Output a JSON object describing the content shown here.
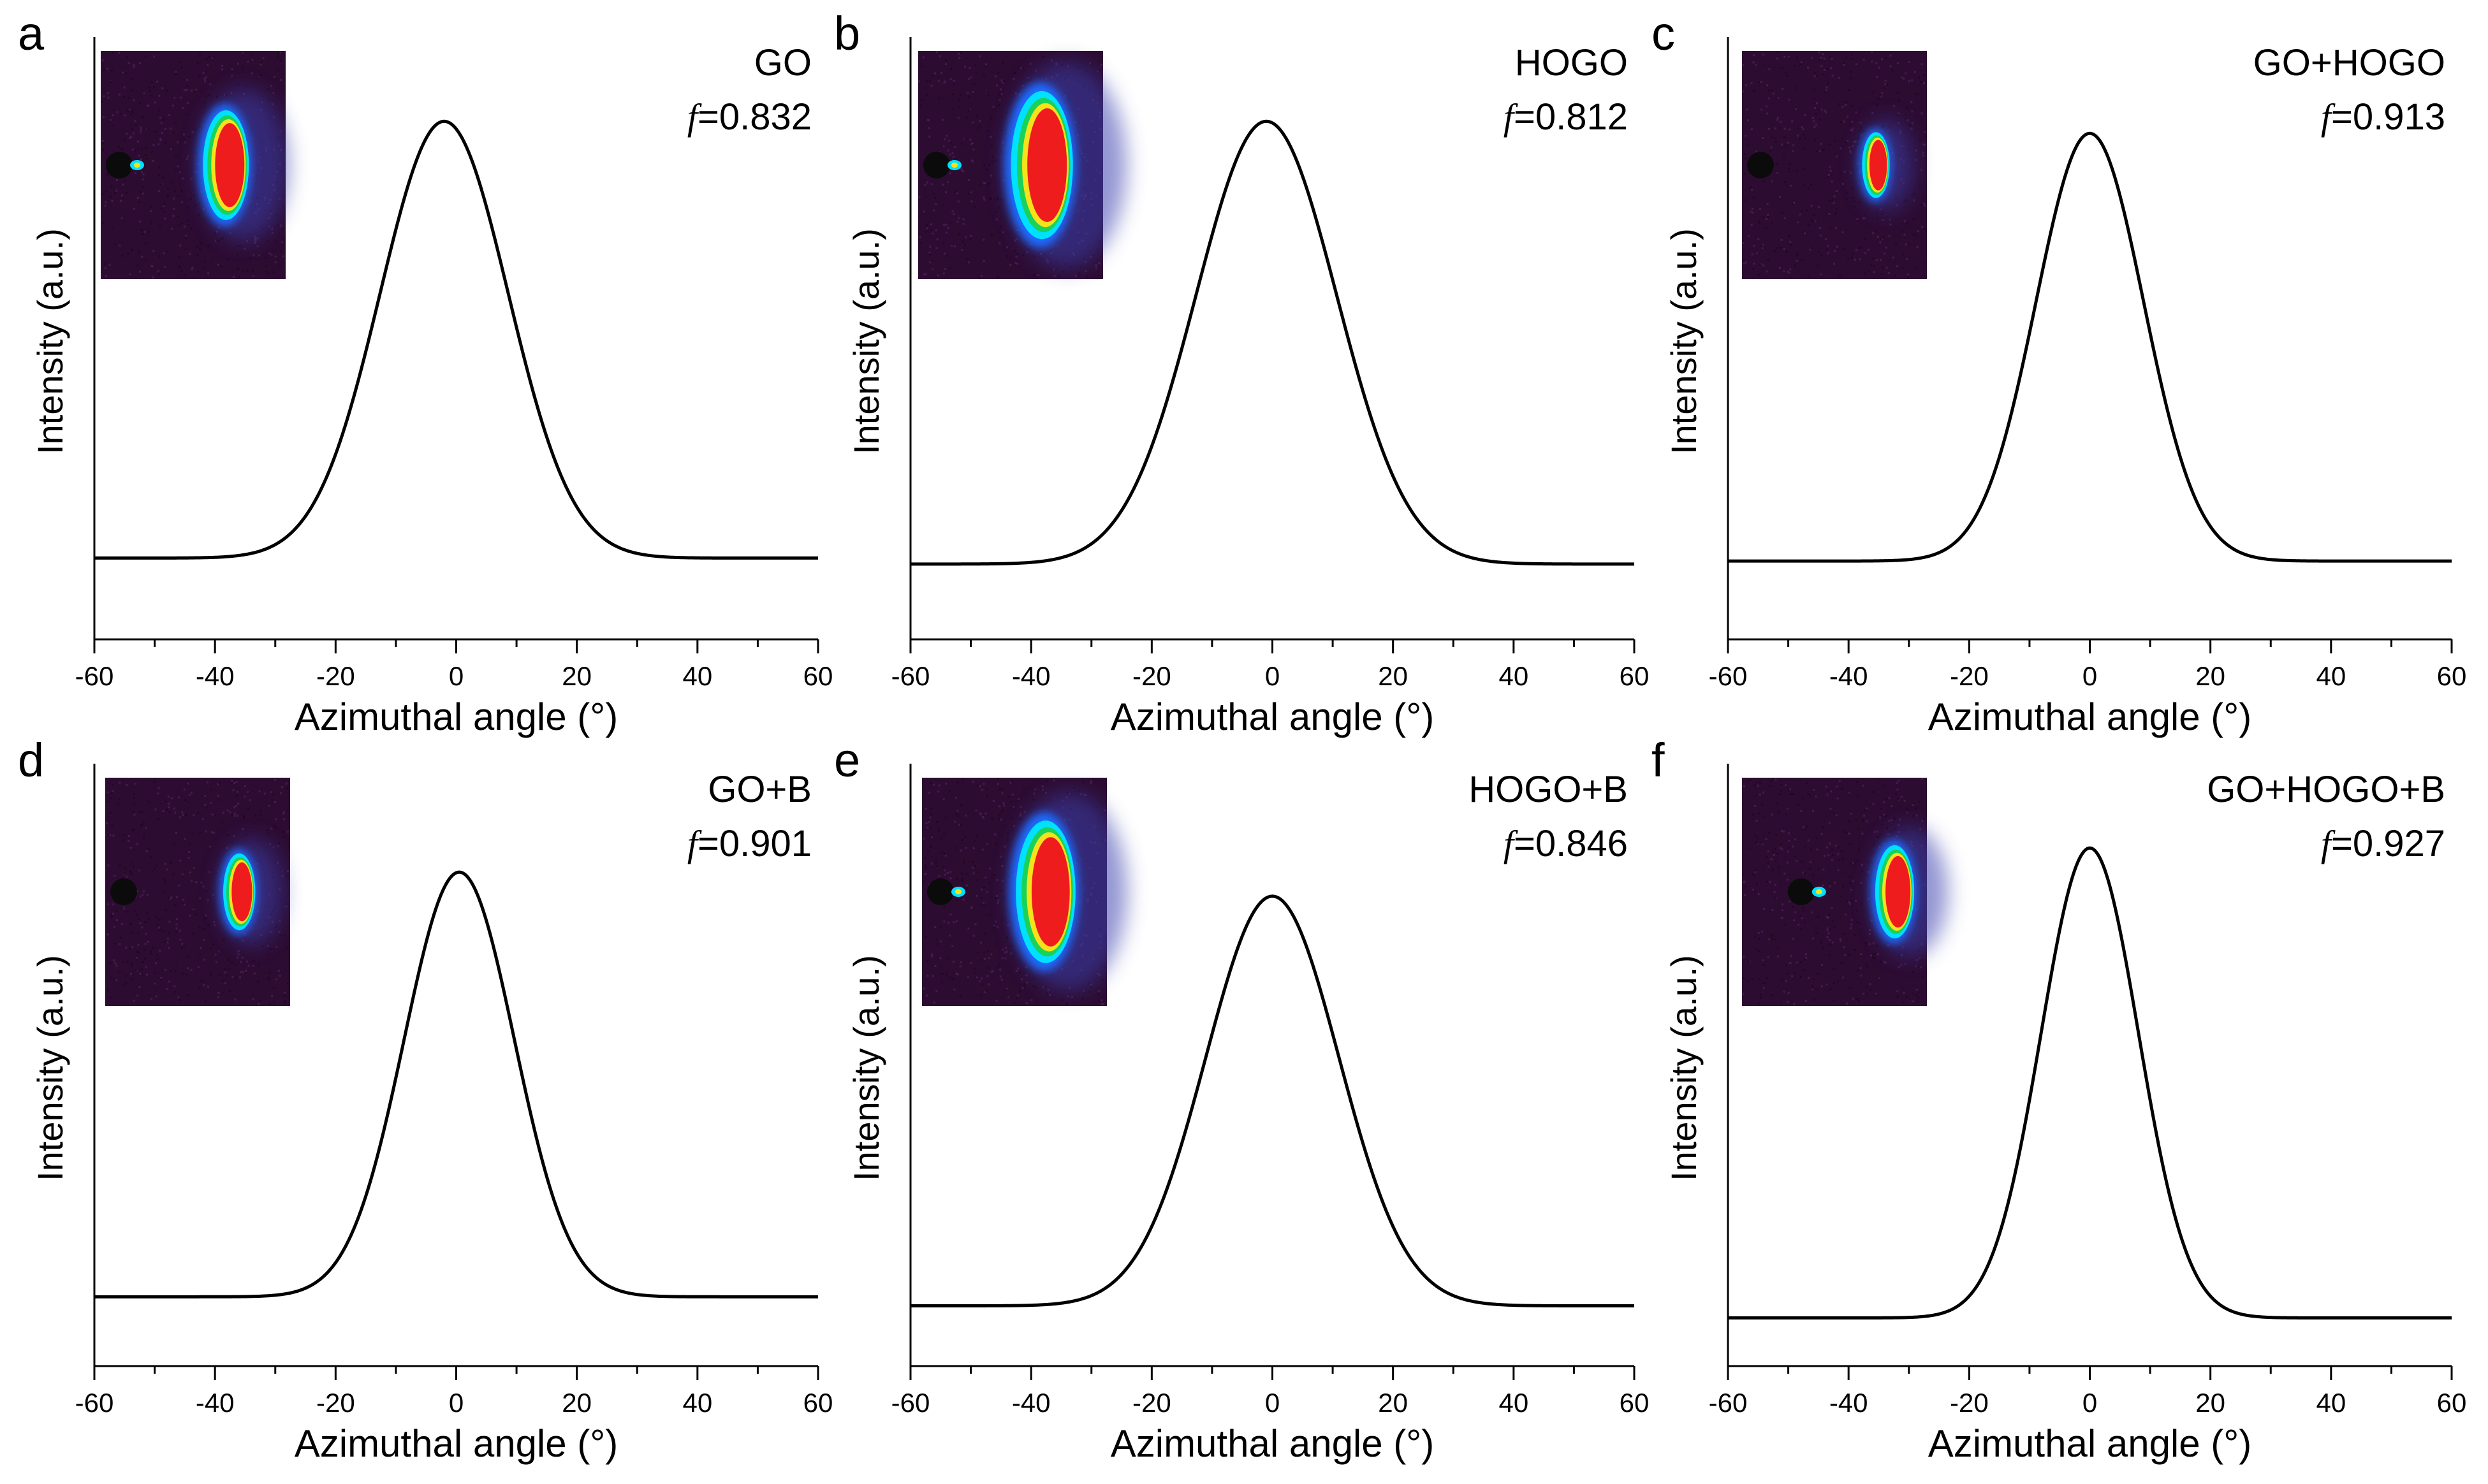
{
  "figure": {
    "xlabel": "Azimuthal angle (°)",
    "ylabel": "Intensity (a.u.)",
    "inset_colors": {
      "background": "#2d0c32",
      "background_speckle": "#4a1f52",
      "beamstop": "#0b0b0b",
      "outer_halo": "#3a3fae",
      "blue": "#1e6bff",
      "cyan": "#00e1ff",
      "green": "#19d25a",
      "yellow": "#f5e21b",
      "red": "#ee1c1c",
      "curve": "#000000"
    }
  },
  "chart_data": [
    {
      "type": "line",
      "panel_label": "a",
      "sample": "GO",
      "f_symbol": "f",
      "f_value": "=0.832",
      "xlabel": "Azimuthal angle (°)",
      "ylabel": "Intensity (a.u.)",
      "xlim": [
        -60,
        60
      ],
      "ylim": [
        0,
        1
      ],
      "x_ticks": [
        -60,
        -40,
        -20,
        0,
        20,
        40,
        60
      ],
      "x_tick_labels": [
        "-60",
        "-40",
        "-20",
        "0",
        "20",
        "40",
        "60"
      ],
      "series": [
        {
          "name": "GO",
          "peak_center": -2,
          "fwhm": 25,
          "baseline": 0.135,
          "peak": 0.86
        }
      ],
      "inset": {
        "beamstop_x": 0.1,
        "arc_x": 0.67,
        "arc_size": 1.0,
        "has_direct_spot": true
      }
    },
    {
      "type": "line",
      "panel_label": "b",
      "sample": "HOGO",
      "f_symbol": "f",
      "f_value": "=0.812",
      "xlabel": "Azimuthal angle (°)",
      "ylabel": "Intensity (a.u.)",
      "xlim": [
        -60,
        60
      ],
      "ylim": [
        0,
        1
      ],
      "x_ticks": [
        -60,
        -40,
        -20,
        0,
        20,
        40,
        60
      ],
      "x_tick_labels": [
        "-60",
        "-40",
        "-20",
        "0",
        "20",
        "40",
        "60"
      ],
      "series": [
        {
          "name": "HOGO",
          "peak_center": -1,
          "fwhm": 27.5,
          "baseline": 0.125,
          "peak": 0.86
        }
      ],
      "inset": {
        "beamstop_x": 0.1,
        "arc_x": 0.66,
        "arc_size": 1.35,
        "has_direct_spot": true
      }
    },
    {
      "type": "line",
      "panel_label": "c",
      "sample": "GO+HOGO",
      "f_symbol": "f",
      "f_value": "=0.913",
      "xlabel": "Azimuthal angle (°)",
      "ylabel": "Intensity (a.u.)",
      "xlim": [
        -60,
        60
      ],
      "ylim": [
        0,
        1
      ],
      "x_ticks": [
        -60,
        -40,
        -20,
        0,
        20,
        40,
        60
      ],
      "x_tick_labels": [
        "-60",
        "-40",
        "-20",
        "0",
        "20",
        "40",
        "60"
      ],
      "series": [
        {
          "name": "GO+HOGO",
          "peak_center": 0,
          "fwhm": 21,
          "baseline": 0.13,
          "peak": 0.84
        }
      ],
      "inset": {
        "beamstop_x": 0.1,
        "arc_x": 0.72,
        "arc_size": 0.6,
        "has_direct_spot": false
      }
    },
    {
      "type": "line",
      "panel_label": "d",
      "sample": "GO+B",
      "f_symbol": "f",
      "f_value": "=0.901",
      "xlabel": "Azimuthal angle (°)",
      "ylabel": "Intensity (a.u.)",
      "xlim": [
        -60,
        60
      ],
      "ylim": [
        0,
        1
      ],
      "x_ticks": [
        -60,
        -40,
        -20,
        0,
        20,
        40,
        60
      ],
      "x_tick_labels": [
        "-60",
        "-40",
        "-20",
        "0",
        "20",
        "40",
        "60"
      ],
      "series": [
        {
          "name": "GO+B",
          "peak_center": 0.5,
          "fwhm": 21.5,
          "baseline": 0.115,
          "peak": 0.82
        }
      ],
      "inset": {
        "beamstop_x": 0.1,
        "arc_x": 0.72,
        "arc_size": 0.7,
        "has_direct_spot": false
      }
    },
    {
      "type": "line",
      "panel_label": "e",
      "sample": "HOGO+B",
      "f_symbol": "f",
      "f_value": "=0.846",
      "xlabel": "Azimuthal angle (°)",
      "ylabel": "Intensity (a.u.)",
      "xlim": [
        -60,
        60
      ],
      "ylim": [
        0,
        1
      ],
      "x_ticks": [
        -60,
        -40,
        -20,
        0,
        20,
        40,
        60
      ],
      "x_tick_labels": [
        "-60",
        "-40",
        "-20",
        "0",
        "20",
        "40",
        "60"
      ],
      "series": [
        {
          "name": "HOGO+B",
          "peak_center": 0,
          "fwhm": 26,
          "baseline": 0.1,
          "peak": 0.78
        }
      ],
      "inset": {
        "beamstop_x": 0.1,
        "arc_x": 0.66,
        "arc_size": 1.3,
        "has_direct_spot": true
      }
    },
    {
      "type": "line",
      "panel_label": "f",
      "sample": "GO+HOGO+B",
      "f_symbol": "f",
      "f_value": "=0.927",
      "xlabel": "Azimuthal angle (°)",
      "ylabel": "Intensity (a.u.)",
      "xlim": [
        -60,
        60
      ],
      "ylim": [
        0,
        1
      ],
      "x_ticks": [
        -60,
        -40,
        -20,
        0,
        20,
        40,
        60
      ],
      "x_tick_labels": [
        "-60",
        "-40",
        "-20",
        "0",
        "20",
        "40",
        "60"
      ],
      "series": [
        {
          "name": "GO+HOGO+B",
          "peak_center": 0,
          "fwhm": 19,
          "baseline": 0.08,
          "peak": 0.86
        }
      ],
      "inset": {
        "beamstop_x": 0.32,
        "arc_x": 0.82,
        "arc_size": 0.85,
        "has_direct_spot": true
      }
    }
  ]
}
